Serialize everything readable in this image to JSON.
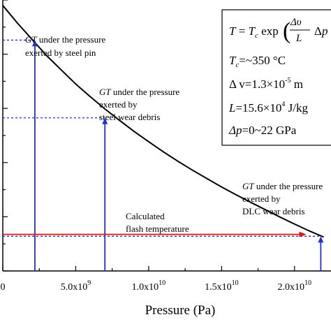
{
  "chart_data": {
    "type": "line",
    "xlabel": "Pressure (Pa)",
    "x_tick_labels": [
      "0",
      "5.0x10",
      "1.0x10",
      "1.5x10",
      "2.0x10"
    ],
    "x_tick_exponents": [
      "",
      "9",
      "10",
      "10",
      "10"
    ],
    "x_ticks": [
      0,
      5000000000,
      10000000000,
      15000000000,
      20000000000
    ],
    "xlim": [
      0,
      22500000000
    ],
    "ylim": [
      0,
      1
    ],
    "series": [
      {
        "x": [
          0,
          1000000000,
          2000000000,
          3000000000,
          4000000000,
          5000000000,
          6000000000,
          7000000000,
          8000000000,
          9000000000,
          10000000000,
          11000000000,
          12000000000,
          13000000000,
          14000000000,
          15000000000,
          16000000000,
          17000000000,
          18000000000,
          19000000000,
          20000000000,
          21000000000,
          22000000000
        ],
        "y": [
          0.98,
          0.915,
          0.855,
          0.795,
          0.742,
          0.69,
          0.643,
          0.598,
          0.556,
          0.515,
          0.477,
          0.44,
          0.405,
          0.372,
          0.341,
          0.31,
          0.281,
          0.253,
          0.226,
          0.199,
          0.173,
          0.148,
          0.125
        ]
      }
    ],
    "markers": [
      {
        "name": "steel_pin",
        "x": 2200000000,
        "y": 0.852,
        "color": "#1f2fd6"
      },
      {
        "name": "steel_debris",
        "x": 7000000000,
        "y": 0.565,
        "color": "#1f2fd6"
      },
      {
        "name": "dlc_debris",
        "x": 21800000000,
        "y": 0.128,
        "color": "#1f2fd6"
      }
    ],
    "flash_temperature": {
      "x_end": 20800000000,
      "y": 0.135,
      "color": "#e01414"
    },
    "annotations": {
      "steel_pin": [
        "GT",
        " under the pressure",
        "exerted by steel pin"
      ],
      "steel_debris": [
        "GT",
        " under the pressure",
        "exerted by",
        "steel wear debris"
      ],
      "dlc_debris": [
        "GT",
        " under the pressure",
        "exerted by",
        "DLC wear debris"
      ],
      "flash": [
        "Calculated",
        "flash temperature"
      ]
    },
    "formula_box": {
      "line1": {
        "lhs": "T",
        "eq": " = ",
        "tc": "T",
        "tc_sub": "c",
        "exp": " exp",
        "num": "Δυ",
        "den": "L",
        "tail": "Δ",
        "tail_var": "p"
      },
      "line2": {
        "var": "T",
        "sub": "c",
        "text": "=~350 °C"
      },
      "line3": {
        "text": "Δ v=1.3×10",
        "sup": "-5",
        "unit": " m"
      },
      "line4": {
        "var": "L",
        "text": "=15.6×10",
        "sup": "4",
        "unit": " J/kg"
      },
      "line5": {
        "var": "Δp",
        "text": "=0~22 GPa"
      }
    },
    "grid": false,
    "legend": "none"
  }
}
